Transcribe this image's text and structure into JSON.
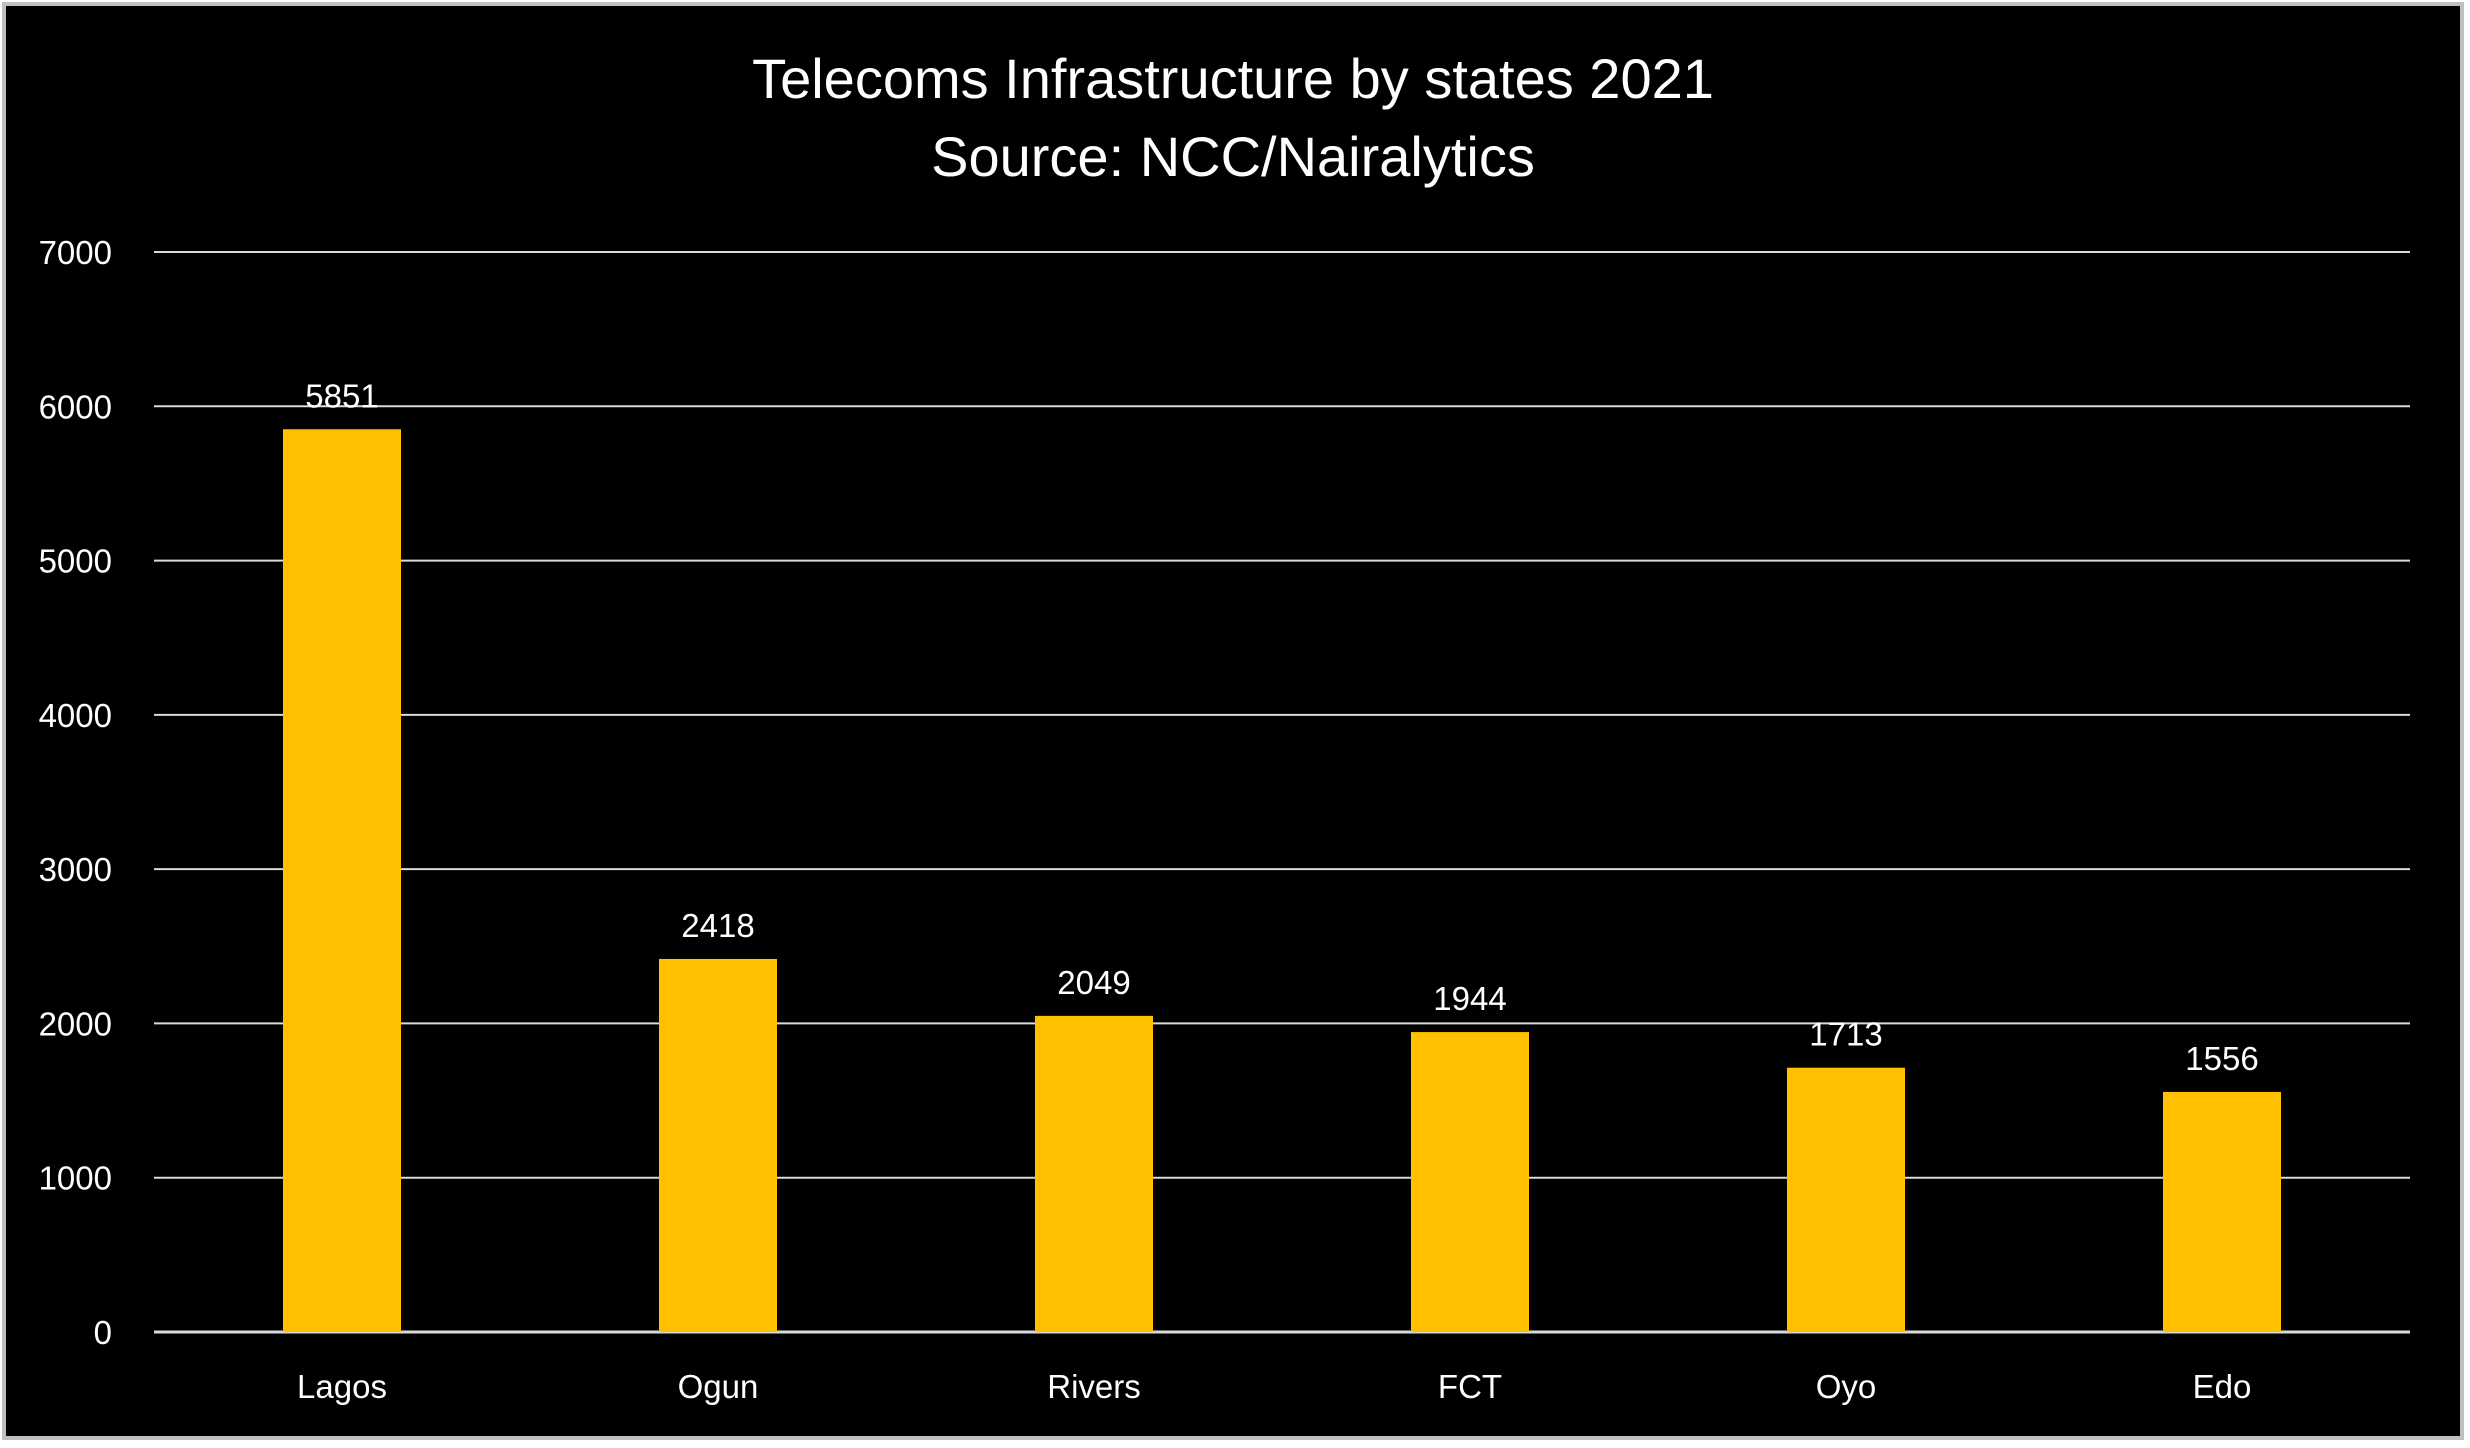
{
  "chart_data": {
    "type": "bar",
    "title": "Telecoms Infrastructure by states 2021",
    "subtitle": "Source: NCC/Nairalytics",
    "xlabel": "",
    "ylabel": "",
    "categories": [
      "Lagos",
      "Ogun",
      "Rivers",
      "FCT",
      "Oyo",
      "Edo"
    ],
    "values": [
      5851,
      2418,
      2049,
      1944,
      1713,
      1556
    ],
    "ylim": [
      0,
      7000
    ],
    "yticks": [
      0,
      1000,
      2000,
      3000,
      4000,
      5000,
      6000,
      7000
    ],
    "grid": true,
    "legend": "none",
    "colors": {
      "background": "#000000",
      "bar": "#FFC000",
      "grid": "#D9D9D9",
      "text": "#FFFFFF"
    }
  }
}
